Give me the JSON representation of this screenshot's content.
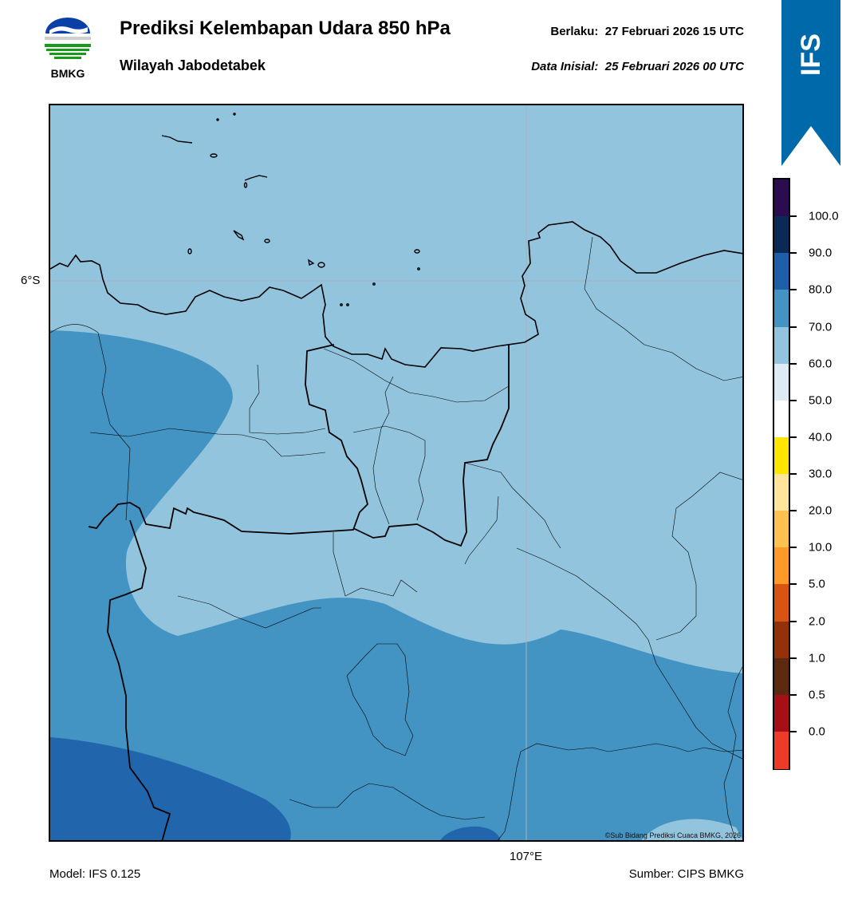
{
  "header": {
    "logo_text": "BMKG",
    "title": "Prediksi Kelembapan Udara 850 hPa",
    "region": "Wilayah Jabodetabek",
    "valid_label": "Berlaku:",
    "valid_time": "27 Februari 2026 15 UTC",
    "init_label": "Data Inisial:",
    "init_time": "25 Februari 2026 00 UTC"
  },
  "map": {
    "lat_label": "6°S",
    "lon_label": "107°E",
    "copyright": "©Sub Bidang Prediksi Cuaca BMKG, 2026",
    "background_color": "#93c4de"
  },
  "ribbon": {
    "label": "IFS",
    "color": "#0069aa"
  },
  "colorbar": {
    "colors_top_to_bottom": [
      "#2b0c4e",
      "#082a54",
      "#1f5ea9",
      "#4393c3",
      "#93c4de",
      "#deebf4",
      "#ffffff",
      "#ffe500",
      "#ffe599",
      "#ffc14f",
      "#ff9a28",
      "#d95412",
      "#943108",
      "#5c2a10",
      "#a50f15",
      "#ed3b2a"
    ],
    "labels": [
      "100.0",
      "90.0",
      "80.0",
      "70.0",
      "60.0",
      "50.0",
      "40.0",
      "30.0",
      "20.0",
      "10.0",
      "5.0",
      "2.0",
      "1.0",
      "0.5",
      "0.0"
    ]
  },
  "footer": {
    "model": "Model: IFS 0.125",
    "source": "Sumber: CIPS BMKG"
  }
}
